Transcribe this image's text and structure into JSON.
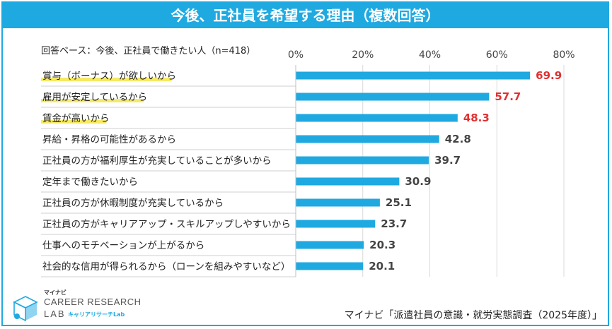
{
  "title": "今後、正社員を希望する理由（複数回答）",
  "base_note": "回答ベース：今後、正社員で働きたい人（n=418）",
  "source": "マイナビ「派遣社員の意識・就労実態調査（2025年度）」",
  "logo": {
    "small": "マイナビ",
    "line1": "CAREER RESEARCH",
    "line2": "LAB",
    "sub": "キャリアリサーチLab"
  },
  "colors": {
    "bar": "#1fa9e1",
    "highlight_value": "#e03030",
    "normal_value": "#444444",
    "highlight_underline": "#f5e64a"
  },
  "chart_data": {
    "type": "bar",
    "orientation": "horizontal",
    "categories": [
      "賞与（ボーナス）が欲しいから",
      "雇用が安定しているから",
      "賃金が高いから",
      "昇給・昇格の可能性があるから",
      "正社員の方が福利厚生が充実していることが多いから",
      "定年まで働きたいから",
      "正社員の方が休暇制度が充実しているから",
      "正社員の方がキャリアアップ・スキルアップしやすいから",
      "仕事へのモチベーションが上がるから",
      "社会的な信用が得られるから（ローンを組みやすいなど）"
    ],
    "values": [
      69.9,
      57.7,
      48.3,
      42.8,
      39.7,
      30.9,
      25.1,
      23.7,
      20.3,
      20.1
    ],
    "value_labels": [
      "69.9",
      "57.7",
      "48.3",
      "42.8",
      "39.7",
      "30.9",
      "25.1",
      "23.7",
      "20.3",
      "20.1"
    ],
    "highlighted_top": 3,
    "ticks": [
      "0%",
      "20%",
      "40%",
      "60%",
      "80%"
    ],
    "tick_values": [
      0,
      20,
      40,
      60,
      80
    ],
    "xlim": [
      0,
      80
    ],
    "grid": true
  }
}
